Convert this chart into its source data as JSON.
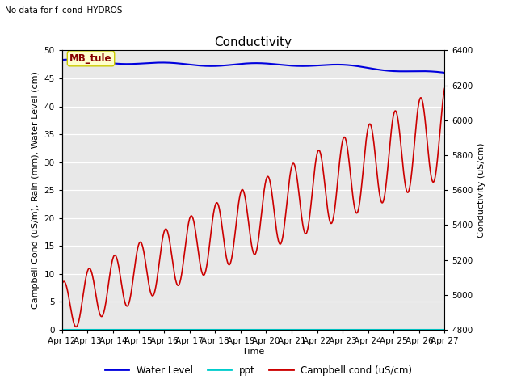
{
  "title": "Conductivity",
  "no_data_text": "No data for f_cond_HYDROS",
  "station_label": "MB_tule",
  "ylabel_left": "Campbell Cond (uS/m), Rain (mm), Water Level (cm)",
  "ylabel_right": "Conductivity (uS/cm)",
  "xlabel": "Time",
  "ylim_left": [
    0,
    50
  ],
  "ylim_right": [
    4800,
    6400
  ],
  "x_tick_labels": [
    "Apr 12",
    "Apr 13",
    "Apr 14",
    "Apr 15",
    "Apr 16",
    "Apr 17",
    "Apr 18",
    "Apr 19",
    "Apr 20",
    "Apr 21",
    "Apr 22",
    "Apr 23",
    "Apr 24",
    "Apr 25",
    "Apr 26",
    "Apr 27"
  ],
  "plot_bg_color": "#e8e8e8",
  "water_level_color": "#0000dd",
  "ppt_color": "#00cccc",
  "campbell_color": "#cc0000",
  "legend_labels": [
    "Water Level",
    "ppt",
    "Campbell cond (uS/cm)"
  ],
  "title_fontsize": 11,
  "axis_fontsize": 8,
  "tick_fontsize": 7.5,
  "right_yticks": [
    4800,
    5000,
    5200,
    5400,
    5600,
    5800,
    6000,
    6200,
    6400
  ],
  "left_yticks": [
    0,
    5,
    10,
    15,
    20,
    25,
    30,
    35,
    40,
    45,
    50
  ]
}
